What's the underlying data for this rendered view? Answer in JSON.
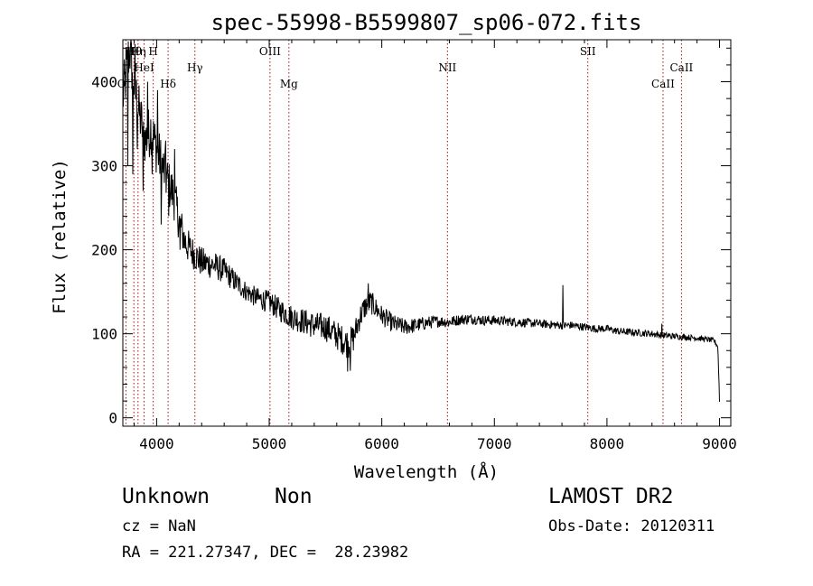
{
  "chart_data": {
    "type": "line",
    "title": "spec-55998-B5599807_sp06-072.fits",
    "xlabel": "Wavelength (Å)",
    "ylabel": "Flux (relative)",
    "xlim": [
      3700,
      9100
    ],
    "ylim": [
      -10,
      450
    ],
    "x_ticks": [
      4000,
      5000,
      6000,
      7000,
      8000,
      9000
    ],
    "y_ticks": [
      0,
      100,
      200,
      300,
      400
    ],
    "grid": false,
    "legend": "none",
    "colors": {
      "spectrum": "#000000",
      "line_marker": "#a01010"
    },
    "anchor_points": [
      [
        3700,
        380
      ],
      [
        3760,
        440
      ],
      [
        3800,
        395
      ],
      [
        3850,
        360
      ],
      [
        3900,
        330
      ],
      [
        3950,
        345
      ],
      [
        4000,
        320
      ],
      [
        4050,
        300
      ],
      [
        4100,
        280
      ],
      [
        4150,
        265
      ],
      [
        4200,
        235
      ],
      [
        4250,
        210
      ],
      [
        4300,
        200
      ],
      [
        4400,
        185
      ],
      [
        4500,
        182
      ],
      [
        4600,
        175
      ],
      [
        4700,
        162
      ],
      [
        4800,
        150
      ],
      [
        4900,
        142
      ],
      [
        5000,
        138
      ],
      [
        5100,
        128
      ],
      [
        5200,
        120
      ],
      [
        5300,
        115
      ],
      [
        5400,
        110
      ],
      [
        5500,
        108
      ],
      [
        5600,
        98
      ],
      [
        5700,
        88
      ],
      [
        5750,
        95
      ],
      [
        5800,
        118
      ],
      [
        5850,
        132
      ],
      [
        5900,
        138
      ],
      [
        6000,
        122
      ],
      [
        6100,
        112
      ],
      [
        6200,
        108
      ],
      [
        6300,
        110
      ],
      [
        6400,
        113
      ],
      [
        6500,
        115
      ],
      [
        6600,
        114
      ],
      [
        6700,
        117
      ],
      [
        6800,
        118
      ],
      [
        6900,
        116
      ],
      [
        7000,
        116
      ],
      [
        7100,
        115
      ],
      [
        7200,
        114
      ],
      [
        7300,
        113
      ],
      [
        7400,
        112
      ],
      [
        7500,
        111
      ],
      [
        7600,
        110
      ],
      [
        7700,
        110
      ],
      [
        7800,
        108
      ],
      [
        7900,
        106
      ],
      [
        8000,
        106
      ],
      [
        8100,
        103
      ],
      [
        8200,
        102
      ],
      [
        8300,
        101
      ],
      [
        8400,
        100
      ],
      [
        8500,
        98
      ],
      [
        8600,
        97
      ],
      [
        8700,
        96
      ],
      [
        8800,
        95
      ],
      [
        8900,
        93
      ],
      [
        8950,
        92
      ],
      [
        8985,
        85
      ],
      [
        8995,
        45
      ],
      [
        9000,
        20
      ]
    ],
    "spike_points": [
      [
        3730,
        440
      ],
      [
        3745,
        300
      ],
      [
        3770,
        445
      ],
      [
        3790,
        290
      ],
      [
        3810,
        445
      ],
      [
        3830,
        320
      ],
      [
        3880,
        270
      ],
      [
        3920,
        400
      ],
      [
        3960,
        290
      ],
      [
        4010,
        390
      ],
      [
        4040,
        230
      ],
      [
        4080,
        330
      ],
      [
        4110,
        240
      ],
      [
        4160,
        320
      ],
      [
        4210,
        200
      ],
      [
        5695,
        55
      ],
      [
        5720,
        56
      ],
      [
        5880,
        160
      ],
      [
        7610,
        158
      ],
      [
        8490,
        112
      ]
    ],
    "noise_level": [
      [
        3700,
        35
      ],
      [
        4100,
        30
      ],
      [
        4300,
        20
      ],
      [
        4800,
        12
      ],
      [
        5200,
        15
      ],
      [
        5700,
        18
      ],
      [
        6000,
        12
      ],
      [
        6500,
        7
      ],
      [
        7500,
        5
      ],
      [
        8500,
        4
      ],
      [
        9000,
        3
      ]
    ],
    "line_markers": [
      {
        "label": "OII",
        "x": 3727,
        "row": 2
      },
      {
        "label": "Hθ",
        "x": 3798,
        "row": 0
      },
      {
        "label": "Hη",
        "x": 3835,
        "row": 0
      },
      {
        "label": "HeI",
        "x": 3889,
        "row": 1
      },
      {
        "label": "H",
        "x": 3970,
        "row": 0
      },
      {
        "label": "Hδ",
        "x": 4102,
        "row": 2
      },
      {
        "label": "Hγ",
        "x": 4340,
        "row": 1
      },
      {
        "label": "OIII",
        "x": 5007,
        "row": 0
      },
      {
        "label": "Mg",
        "x": 5175,
        "row": 2
      },
      {
        "label": "NII",
        "x": 6583,
        "row": 1
      },
      {
        "label": "SII",
        "x": 7830,
        "row": 0
      },
      {
        "label": "CaII",
        "x": 8498,
        "row": 2
      },
      {
        "label": "CaII",
        "x": 8662,
        "row": 1
      }
    ]
  },
  "footer": {
    "object_class": "Unknown",
    "object_subclass": "Non",
    "cz": "cz = NaN",
    "coords": "RA = 221.27347, DEC =  28.23982",
    "survey": "LAMOST DR2",
    "obs_date": "Obs-Date: 20120311"
  }
}
